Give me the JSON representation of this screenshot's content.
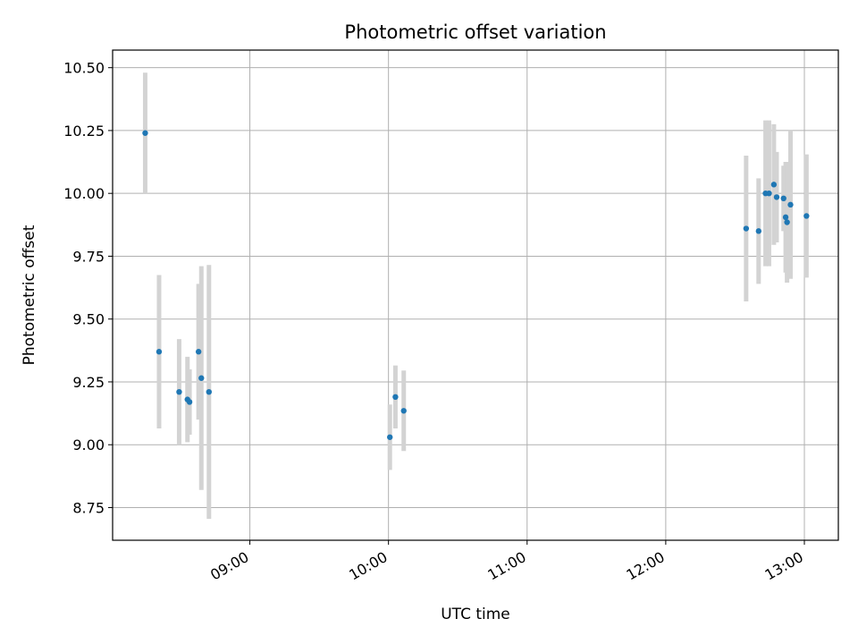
{
  "chart_data": {
    "type": "scatter",
    "title": "Photometric offset variation",
    "xlabel": "UTC time",
    "ylabel": "Photometric offset",
    "grid": true,
    "xlim_hours": [
      8.01,
      13.245
    ],
    "ylim": [
      8.62,
      10.57
    ],
    "x_ticks": [
      {
        "hour": 9,
        "label": "09:00"
      },
      {
        "hour": 10,
        "label": "10:00"
      },
      {
        "hour": 11,
        "label": "11:00"
      },
      {
        "hour": 12,
        "label": "12:00"
      },
      {
        "hour": 13,
        "label": "13:00"
      }
    ],
    "y_ticks": [
      {
        "value": 8.75,
        "label": "8.75"
      },
      {
        "value": 9.0,
        "label": "9.00"
      },
      {
        "value": 9.25,
        "label": "9.25"
      },
      {
        "value": 9.5,
        "label": "9.50"
      },
      {
        "value": 9.75,
        "label": "9.75"
      },
      {
        "value": 10.0,
        "label": "10.00"
      },
      {
        "value": 10.25,
        "label": "10.25"
      },
      {
        "value": 10.5,
        "label": "10.50"
      }
    ],
    "point_color": "#1f77b4",
    "errorbar_color": "#d3d3d3",
    "points": [
      {
        "hour": 8.245,
        "value": 10.24,
        "err": 0.24
      },
      {
        "hour": 8.345,
        "value": 9.37,
        "err": 0.305
      },
      {
        "hour": 8.49,
        "value": 9.21,
        "err": 0.21
      },
      {
        "hour": 8.55,
        "value": 9.18,
        "err": 0.17
      },
      {
        "hour": 8.565,
        "value": 9.17,
        "err": 0.13
      },
      {
        "hour": 8.63,
        "value": 9.37,
        "err": 0.27
      },
      {
        "hour": 8.65,
        "value": 9.265,
        "err": 0.445
      },
      {
        "hour": 8.705,
        "value": 9.21,
        "err": 0.505
      },
      {
        "hour": 10.01,
        "value": 9.03,
        "err": 0.13
      },
      {
        "hour": 10.05,
        "value": 9.19,
        "err": 0.125
      },
      {
        "hour": 10.11,
        "value": 9.135,
        "err": 0.16
      },
      {
        "hour": 12.58,
        "value": 9.86,
        "err": 0.29
      },
      {
        "hour": 12.67,
        "value": 9.85,
        "err": 0.21
      },
      {
        "hour": 12.72,
        "value": 10.0,
        "err": 0.29
      },
      {
        "hour": 12.745,
        "value": 10.0,
        "err": 0.29
      },
      {
        "hour": 12.78,
        "value": 10.035,
        "err": 0.24
      },
      {
        "hour": 12.8,
        "value": 9.985,
        "err": 0.18
      },
      {
        "hour": 12.85,
        "value": 9.98,
        "err": 0.13
      },
      {
        "hour": 12.865,
        "value": 9.905,
        "err": 0.22
      },
      {
        "hour": 12.875,
        "value": 9.885,
        "err": 0.24
      },
      {
        "hour": 12.9,
        "value": 9.955,
        "err": 0.295
      },
      {
        "hour": 13.015,
        "value": 9.91,
        "err": 0.245
      }
    ]
  }
}
